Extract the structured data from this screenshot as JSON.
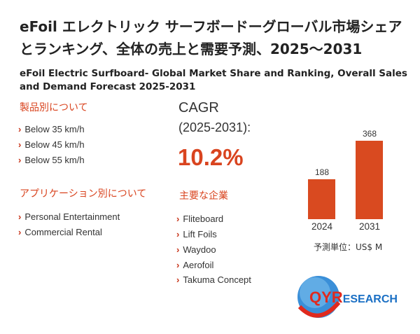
{
  "title": "eFoil エレクトリック サーフボードーグローバル市場シェアとランキング、全体の売上と需要予測、2025～2031",
  "subtitle": "eFoil Electric Surfboard- Global Market Share and Ranking, Overall Sales and Demand Forecast 2025-2031",
  "by_product": {
    "heading": "製品別について",
    "items": [
      "Below 35 km/h",
      "Below 45 km/h",
      "Below 55 km/h"
    ]
  },
  "by_application": {
    "heading": "アプリケーション別について",
    "items": [
      "Personal Entertainment",
      "Commercial Rental"
    ]
  },
  "cagr": {
    "label": "CAGR",
    "period": "(2025-2031):",
    "value": "10.2%"
  },
  "companies": {
    "heading": "主要な企業",
    "items": [
      "Fliteboard",
      "Lift Foils",
      "Waydoo",
      "Aerofoil",
      "Takuma Concept"
    ]
  },
  "chart_data": {
    "type": "bar",
    "categories": [
      "2024",
      "2031"
    ],
    "values": [
      188,
      368
    ],
    "unit_label": "予測単位：US$ M",
    "color": "#d94a20"
  },
  "logo": {
    "text_q": "QY",
    "text_r": "R",
    "text_rest": "ESEARCH"
  },
  "colors": {
    "accent": "#d9441f",
    "logo_blue": "#1a6fc4"
  }
}
